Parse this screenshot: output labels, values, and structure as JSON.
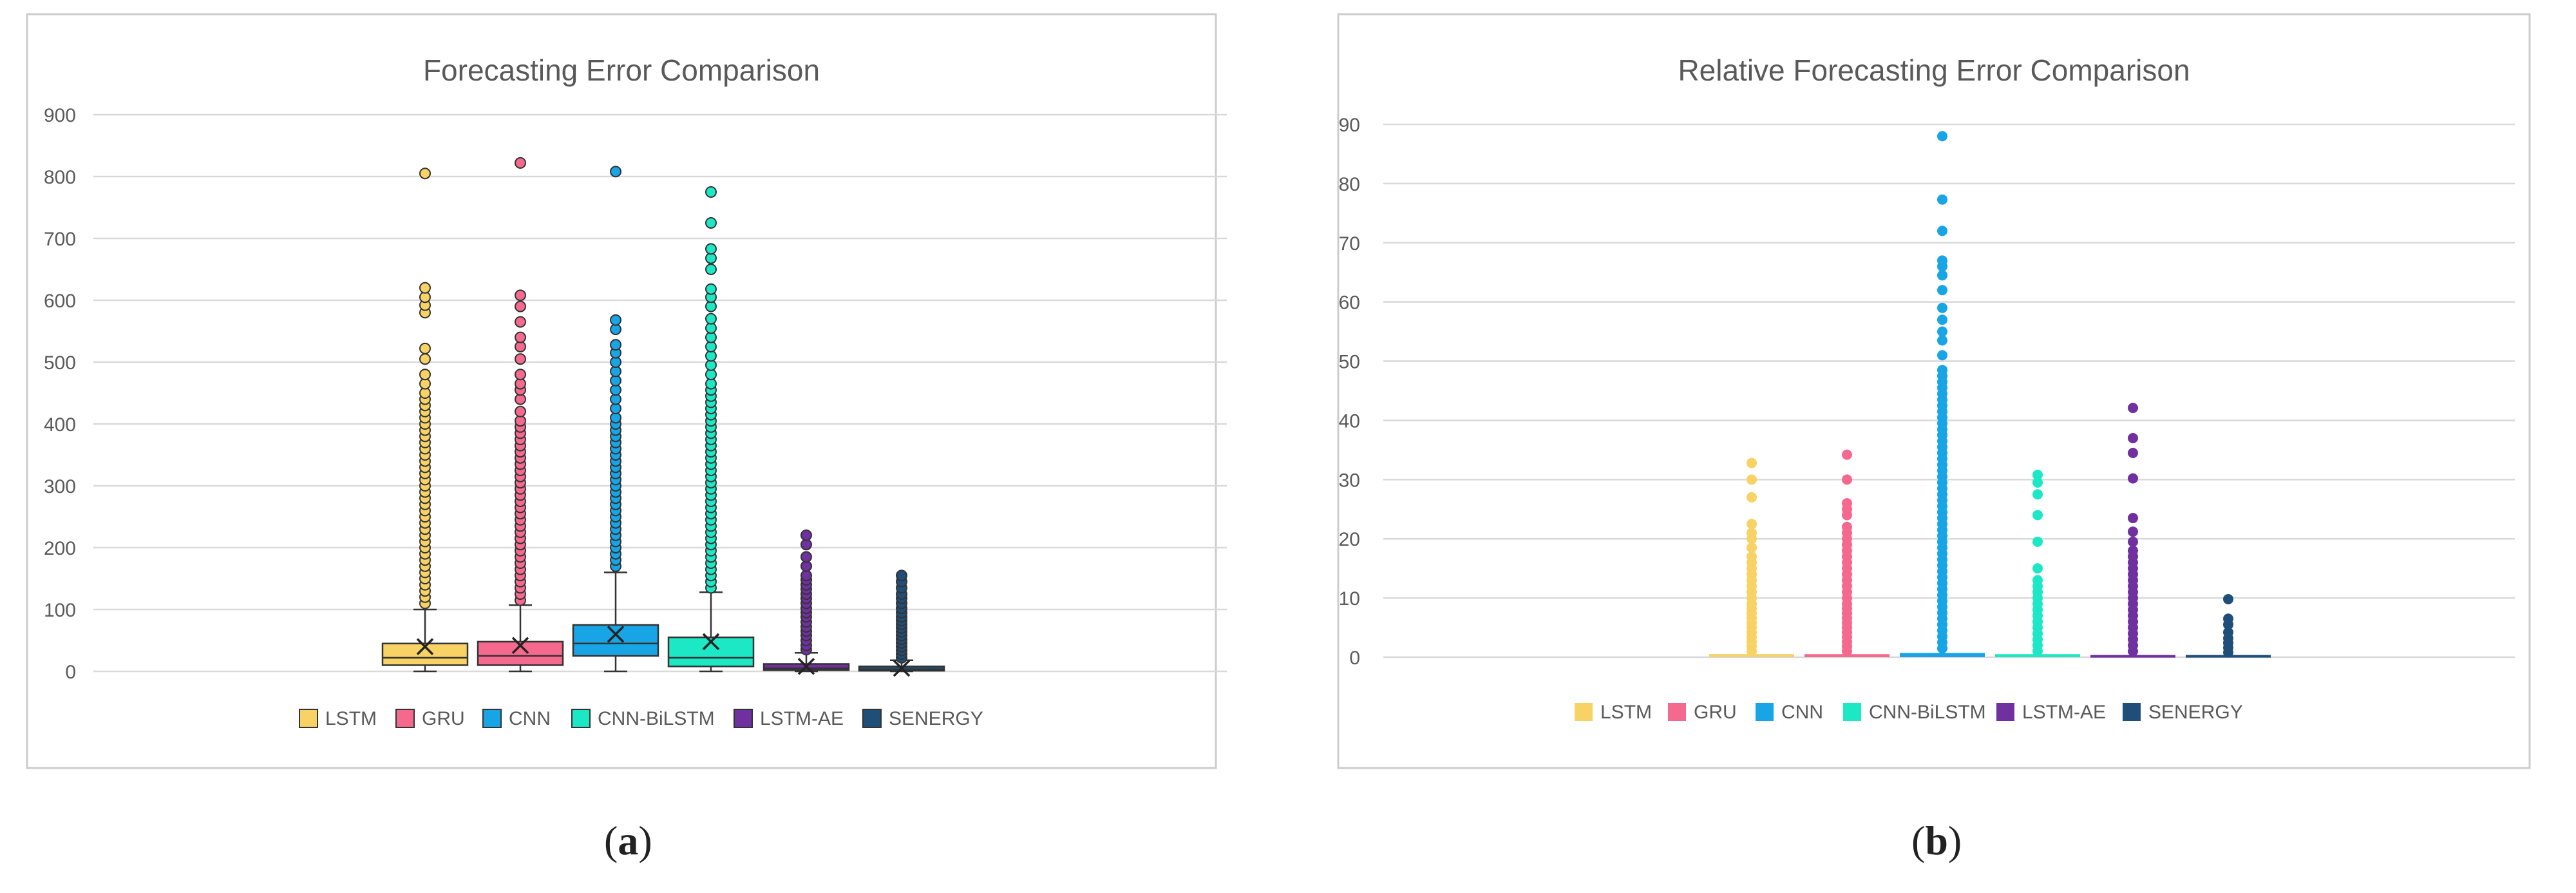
{
  "palette": {
    "LSTM": "#f8d264",
    "GRU": "#f5698e",
    "CNN": "#17a5e6",
    "CNN-BiLSTM": "#1de8c5",
    "LSTM-AE": "#7030a0",
    "SENERGY": "#1f4e79",
    "grid": "#d9d9d9",
    "frame": "#cccccc",
    "tick_text": "#595959",
    "title_text": "#595959"
  },
  "panels": {
    "a": {
      "label_open": "(",
      "label_letter": "a",
      "label_close": ")"
    },
    "b": {
      "label_open": "(",
      "label_letter": "b",
      "label_close": ")"
    }
  },
  "chart_data": [
    {
      "id": "a",
      "type": "box",
      "title": "Forecasting Error Comparison",
      "xlabel": "",
      "ylabel": "",
      "ylim": [
        0,
        900
      ],
      "yticks": [
        0,
        100,
        200,
        300,
        400,
        500,
        600,
        700,
        800,
        900
      ],
      "grid": true,
      "legend_position": "bottom",
      "series": [
        {
          "name": "LSTM",
          "min": 0,
          "q1": 10,
          "median": 22,
          "q3": 45,
          "whisker_high": 100,
          "mean": 40,
          "outliers": [
            110,
            120,
            130,
            140,
            150,
            160,
            170,
            180,
            190,
            200,
            210,
            220,
            230,
            240,
            250,
            260,
            270,
            280,
            290,
            300,
            310,
            320,
            330,
            340,
            350,
            360,
            370,
            380,
            390,
            400,
            410,
            420,
            430,
            440,
            450,
            465,
            480,
            505,
            522,
            580,
            592,
            605,
            620,
            805
          ]
        },
        {
          "name": "GRU",
          "min": 0,
          "q1": 10,
          "median": 25,
          "q3": 48,
          "whisker_high": 107,
          "mean": 42,
          "outliers": [
            115,
            125,
            135,
            145,
            155,
            165,
            175,
            185,
            195,
            205,
            215,
            225,
            235,
            245,
            255,
            265,
            275,
            285,
            295,
            305,
            315,
            325,
            335,
            345,
            355,
            365,
            375,
            385,
            395,
            405,
            420,
            440,
            455,
            465,
            480,
            505,
            525,
            540,
            565,
            590,
            608,
            822
          ]
        },
        {
          "name": "CNN",
          "min": 0,
          "q1": 25,
          "median": 45,
          "q3": 75,
          "whisker_high": 160,
          "mean": 60,
          "outliers": [
            170,
            180,
            190,
            200,
            210,
            220,
            230,
            240,
            250,
            260,
            270,
            280,
            290,
            300,
            310,
            320,
            330,
            340,
            350,
            360,
            370,
            380,
            390,
            400,
            410,
            425,
            440,
            455,
            470,
            485,
            500,
            515,
            528,
            553,
            568,
            808
          ]
        },
        {
          "name": "CNN-BiLSTM",
          "min": 0,
          "q1": 8,
          "median": 22,
          "q3": 55,
          "whisker_high": 128,
          "mean": 48,
          "outliers": [
            135,
            145,
            155,
            165,
            175,
            185,
            195,
            205,
            215,
            225,
            235,
            245,
            255,
            265,
            275,
            285,
            295,
            305,
            315,
            325,
            335,
            345,
            355,
            365,
            375,
            385,
            395,
            405,
            415,
            425,
            435,
            445,
            455,
            465,
            480,
            495,
            510,
            525,
            540,
            555,
            570,
            590,
            605,
            618,
            650,
            668,
            683,
            725,
            775
          ]
        },
        {
          "name": "LSTM-AE",
          "min": 0,
          "q1": 2,
          "median": 5,
          "q3": 12,
          "whisker_high": 30,
          "mean": 8,
          "outliers": [
            35,
            42,
            50,
            58,
            65,
            72,
            80,
            88,
            95,
            102,
            110,
            118,
            125,
            133,
            140,
            148,
            155,
            170,
            185,
            205,
            220
          ]
        },
        {
          "name": "SENERGY",
          "min": 0,
          "q1": 1,
          "median": 3,
          "q3": 8,
          "whisker_high": 18,
          "mean": 5,
          "outliers": [
            22,
            28,
            34,
            40,
            46,
            52,
            58,
            64,
            70,
            76,
            82,
            88,
            95,
            102,
            110,
            118,
            125,
            135,
            145,
            155
          ]
        }
      ]
    },
    {
      "id": "b",
      "type": "box",
      "title": "Relative Forecasting Error Comparison",
      "xlabel": "",
      "ylabel": "",
      "ylim": [
        0,
        90
      ],
      "yticks": [
        0,
        10,
        20,
        30,
        40,
        50,
        60,
        70,
        80,
        90
      ],
      "grid": true,
      "legend_position": "bottom",
      "series": [
        {
          "name": "LSTM",
          "q1": 0,
          "median": 0.1,
          "q3": 0.3,
          "whisker_high": 0.6,
          "outliers": [
            1,
            1.8,
            2.6,
            3.4,
            4.2,
            5,
            5.8,
            6.6,
            7.4,
            8.2,
            9,
            10,
            11,
            12,
            13,
            14,
            15,
            16,
            17,
            18.5,
            20,
            21,
            22.5,
            27,
            30,
            32.8
          ]
        },
        {
          "name": "GRU",
          "q1": 0,
          "median": 0.1,
          "q3": 0.3,
          "whisker_high": 0.6,
          "outliers": [
            1,
            1.8,
            2.6,
            3.4,
            4.2,
            5,
            5.8,
            6.6,
            7.4,
            8.2,
            9,
            10,
            11,
            12,
            13,
            14,
            15,
            16,
            17,
            18,
            19,
            20,
            21,
            22,
            24,
            25,
            26,
            30,
            34.2
          ]
        },
        {
          "name": "CNN",
          "q1": 0,
          "median": 0.2,
          "q3": 0.5,
          "whisker_high": 1,
          "outliers": [
            1.5,
            2.5,
            3.5,
            4.5,
            5.5,
            6.5,
            7.5,
            8.5,
            9.5,
            10.5,
            11.5,
            12.5,
            13.5,
            14.5,
            15.5,
            16.5,
            17.5,
            18.5,
            19.5,
            20.5,
            21.5,
            22.5,
            23.5,
            24.5,
            25.5,
            26.5,
            27.5,
            28.5,
            29.5,
            30.5,
            31.5,
            32.5,
            33.5,
            34.5,
            35.5,
            36.5,
            37.5,
            38.5,
            39.5,
            40.5,
            41.5,
            42.5,
            43.5,
            44.5,
            45.5,
            46.5,
            47.5,
            48.5,
            51,
            53.5,
            55,
            57,
            59,
            62,
            64.5,
            66,
            67,
            72,
            77.3,
            88
          ]
        },
        {
          "name": "CNN-BiLSTM",
          "q1": 0,
          "median": 0.1,
          "q3": 0.3,
          "whisker_high": 0.6,
          "outliers": [
            1,
            2,
            3,
            4,
            5,
            6,
            7,
            8,
            9,
            10,
            11,
            12,
            13,
            15,
            19.5,
            24,
            27.5,
            29.5,
            30.8
          ]
        },
        {
          "name": "LSTM-AE",
          "q1": 0,
          "median": 0.05,
          "q3": 0.15,
          "whisker_high": 0.4,
          "outliers": [
            1,
            2,
            3,
            4,
            5,
            6,
            7,
            8,
            9,
            10,
            11,
            12,
            13,
            14,
            15,
            16,
            17,
            18,
            19.5,
            21.2,
            23.5,
            30.2,
            34.5,
            37,
            42.1
          ]
        },
        {
          "name": "SENERGY",
          "q1": 0,
          "median": 0.05,
          "q3": 0.15,
          "whisker_high": 0.3,
          "outliers": [
            0.8,
            1.6,
            2.4,
            3.2,
            4.2,
            5.5,
            6.5,
            9.8
          ]
        }
      ]
    }
  ]
}
